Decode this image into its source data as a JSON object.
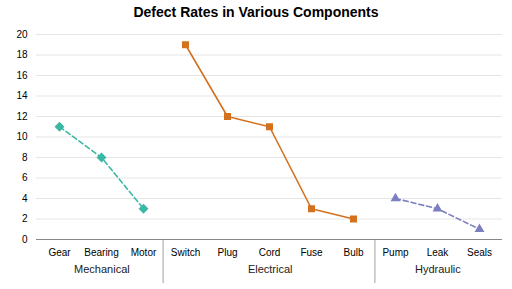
{
  "chart_data": {
    "type": "line",
    "title": "Defect Rates in Various Components",
    "categories": [
      "Gear",
      "Bearing",
      "Motor",
      "Switch",
      "Plug",
      "Cord",
      "Fuse",
      "Bulb",
      "Pump",
      "Leak",
      "Seals"
    ],
    "series": [
      {
        "name": "Mechanical",
        "color": "#3ab8a4",
        "marker": "diamond",
        "line_style": "dashed",
        "values": [
          11,
          8,
          3,
          null,
          null,
          null,
          null,
          null,
          null,
          null,
          null
        ]
      },
      {
        "name": "Electrical",
        "color": "#d4711e",
        "marker": "square",
        "line_style": "solid",
        "values": [
          null,
          null,
          null,
          19,
          12,
          11,
          3,
          2,
          null,
          null,
          null
        ]
      },
      {
        "name": "Hydraulic",
        "color": "#7b7fbf",
        "marker": "triangle",
        "line_style": "dashed",
        "values": [
          null,
          null,
          null,
          null,
          null,
          null,
          null,
          null,
          4,
          3,
          1
        ]
      }
    ],
    "ylim": [
      0,
      20
    ],
    "yticks": [
      0,
      2,
      4,
      6,
      8,
      10,
      12,
      14,
      16,
      18,
      20
    ],
    "grid": true
  }
}
